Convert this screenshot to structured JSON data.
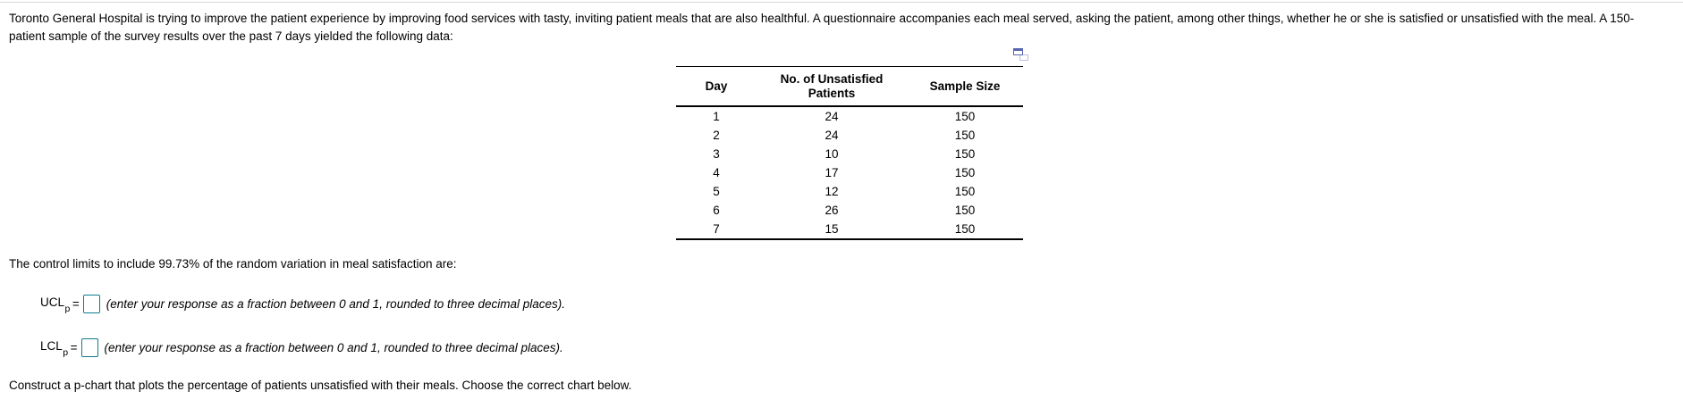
{
  "intro_text": "Toronto General Hospital is trying to improve the patient experience by improving food services with tasty, inviting patient meals that are also healthful. A questionnaire accompanies each meal served, asking the patient, among other things, whether he or she is satisfied or unsatisfied with the meal. A 150-patient sample of the survey results over the past 7 days yielded the following data:",
  "table": {
    "columns": [
      "Day",
      "No. of Unsatisfied Patients",
      "Sample Size"
    ],
    "rows": [
      [
        "1",
        "24",
        "150"
      ],
      [
        "2",
        "24",
        "150"
      ],
      [
        "3",
        "10",
        "150"
      ],
      [
        "4",
        "17",
        "150"
      ],
      [
        "5",
        "12",
        "150"
      ],
      [
        "6",
        "26",
        "150"
      ],
      [
        "7",
        "15",
        "150"
      ]
    ]
  },
  "icons": {
    "popout": "popout-icon"
  },
  "control_limits": {
    "intro": "The control limits to include 99.73% of the random variation in meal satisfaction are:",
    "ucl": {
      "label": "UCL",
      "sub": "p",
      "eq": "=",
      "value": "",
      "hint": "(enter your response as a fraction between 0 and 1, rounded to three decimal places)."
    },
    "lcl": {
      "label": "LCL",
      "sub": "p",
      "eq": "=",
      "value": "",
      "hint": "(enter your response as a fraction between 0 and 1, rounded to three decimal places)."
    }
  },
  "construct_text": "Construct a p-chart that plots the percentage of patients unsatisfied with their meals. Choose the correct chart below.",
  "colors": {
    "input_border": "#0d7c8b",
    "icon_front": "#5766b3",
    "icon_back": "#b7bfe6",
    "table_border": "#000000",
    "top_rule": "#d8d8d8",
    "text": "#000000"
  }
}
